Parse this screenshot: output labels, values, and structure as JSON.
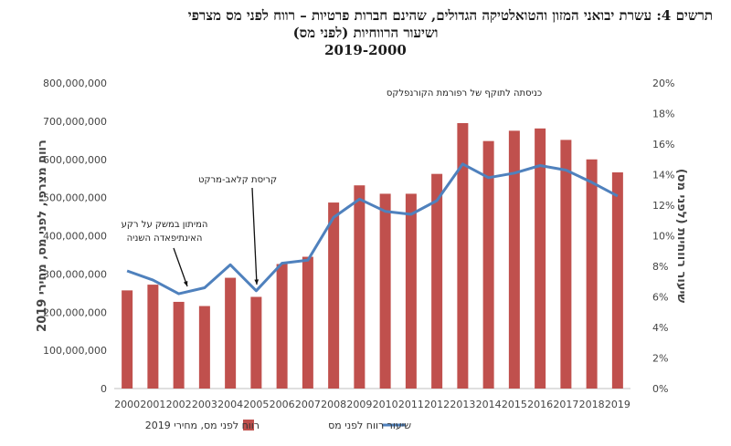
{
  "title": {
    "line1": "תרשים 4:  עשרת יבואני המזון והטואלטיקה הגדולים, שהינם חברות פרטיות – רווח לפני מס מצרפי",
    "line2": "ושיעור הרווחיות (לפני מס)",
    "line3": "2019-2000"
  },
  "chart_data": {
    "type": "bar+line",
    "categories": [
      "2000",
      "2001",
      "2002",
      "2003",
      "2004",
      "2005",
      "2006",
      "2007",
      "2008",
      "2009",
      "2010",
      "2011",
      "2012",
      "2013",
      "2014",
      "2015",
      "2016",
      "2017",
      "2018",
      "2019"
    ],
    "series": [
      {
        "name": "רווח לפני מס, מחירי 2019",
        "type": "bar",
        "axis": "left",
        "color": "#c0504d",
        "values": [
          257000000,
          272000000,
          227000000,
          216000000,
          290000000,
          240000000,
          326000000,
          345000000,
          487000000,
          532000000,
          510000000,
          510000000,
          562000000,
          695000000,
          648000000,
          675000000,
          681000000,
          651000000,
          600000000,
          566000000
        ]
      },
      {
        "name": "שיעור רווח לפני מס",
        "type": "line",
        "axis": "right",
        "color": "#4f81bd",
        "values": [
          7.7,
          7.1,
          6.2,
          6.6,
          8.1,
          6.4,
          8.2,
          8.4,
          11.2,
          12.4,
          11.6,
          11.4,
          12.3,
          14.7,
          13.8,
          14.1,
          14.6,
          14.3,
          13.5,
          12.6
        ]
      }
    ],
    "y_left": {
      "label": "רווח מצרפי, לפני מס, מחירי 2019",
      "ylim": [
        0,
        800000000
      ],
      "ticks": [
        "0",
        "100,000,000",
        "200,000,000",
        "300,000,000",
        "400,000,000",
        "500,000,000",
        "600,000,000",
        "700,000,000",
        "800,000,000"
      ]
    },
    "y_right": {
      "label": "שיעור רווחיות (לפני מס)",
      "ylim": [
        0,
        20
      ],
      "ticks": [
        "0%",
        "2%",
        "4%",
        "6%",
        "8%",
        "10%",
        "12%",
        "14%",
        "16%",
        "18%",
        "20%"
      ]
    },
    "annotations": [
      {
        "text_lines": [
          "המיתון במשק על רקע",
          "האינתיפאדה השניה"
        ],
        "points_to": "2002"
      },
      {
        "text_lines": [
          "קריסת קלאב-מרקט"
        ],
        "points_to": "2005"
      },
      {
        "text_lines": [
          "כניסתה לתוקף של רפורמת הקורנפלקס"
        ],
        "points_to": "2013"
      }
    ],
    "legend": {
      "placement": "bottom"
    },
    "grid": false
  }
}
